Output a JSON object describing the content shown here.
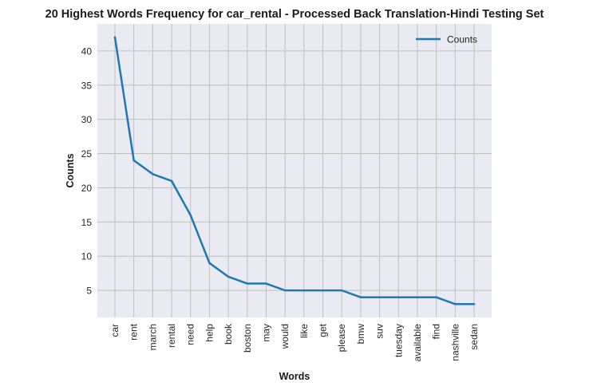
{
  "chart_data": {
    "type": "line",
    "title": "20 Highest Words Frequency for car_rental - Processed Back Translation-Hindi Testing Set",
    "xlabel": "Words",
    "ylabel": "Counts",
    "categories": [
      "car",
      "rent",
      "march",
      "rental",
      "need",
      "help",
      "book",
      "boston",
      "may",
      "would",
      "like",
      "get",
      "please",
      "bmw",
      "suv",
      "tuesday",
      "available",
      "find",
      "nashville",
      "sedan"
    ],
    "series": [
      {
        "name": "Counts",
        "values": [
          42,
          24,
          22,
          21,
          16,
          9,
          7,
          6,
          6,
          5,
          5,
          5,
          5,
          4,
          4,
          4,
          4,
          4,
          3,
          3
        ],
        "color": "#1f77b4"
      }
    ],
    "yticks": [
      5,
      10,
      15,
      20,
      25,
      30,
      35,
      40
    ],
    "ylim": [
      1.05,
      43.95
    ],
    "grid": true,
    "legend_position": "top-right",
    "background_color": "#eaeaf2",
    "grid_color": "#c0c0c0"
  }
}
